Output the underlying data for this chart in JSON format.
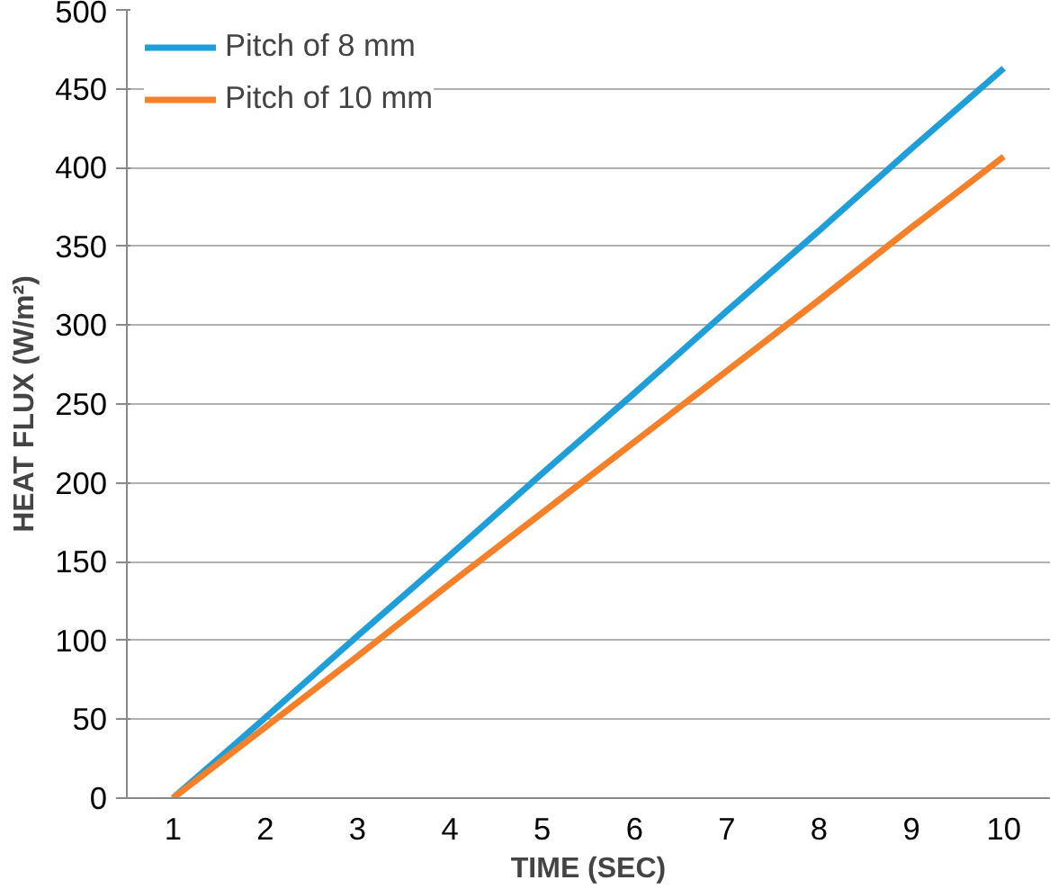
{
  "chart_data": {
    "type": "line",
    "xlabel": "TIME (SEC)",
    "ylabel": "HEAT FLUX (W/m²)",
    "categories": [
      "1",
      "2",
      "3",
      "4",
      "5",
      "6",
      "7",
      "8",
      "9",
      "10"
    ],
    "series": [
      {
        "name": "Pitch of 8 mm",
        "color": "#1f9ed8",
        "values": [
          0,
          51,
          103,
          154,
          206,
          257,
          309,
          360,
          412,
          463
        ]
      },
      {
        "name": "Pitch of 10 mm",
        "color": "#f5802a",
        "values": [
          0,
          45,
          90,
          136,
          181,
          226,
          271,
          316,
          362,
          407
        ]
      }
    ],
    "ylim": [
      0,
      500
    ],
    "yticks": [
      0,
      50,
      100,
      150,
      200,
      250,
      300,
      350,
      400,
      450,
      500
    ],
    "grid": "y",
    "legend": "top left",
    "marker": "none",
    "line_style": "solid"
  }
}
